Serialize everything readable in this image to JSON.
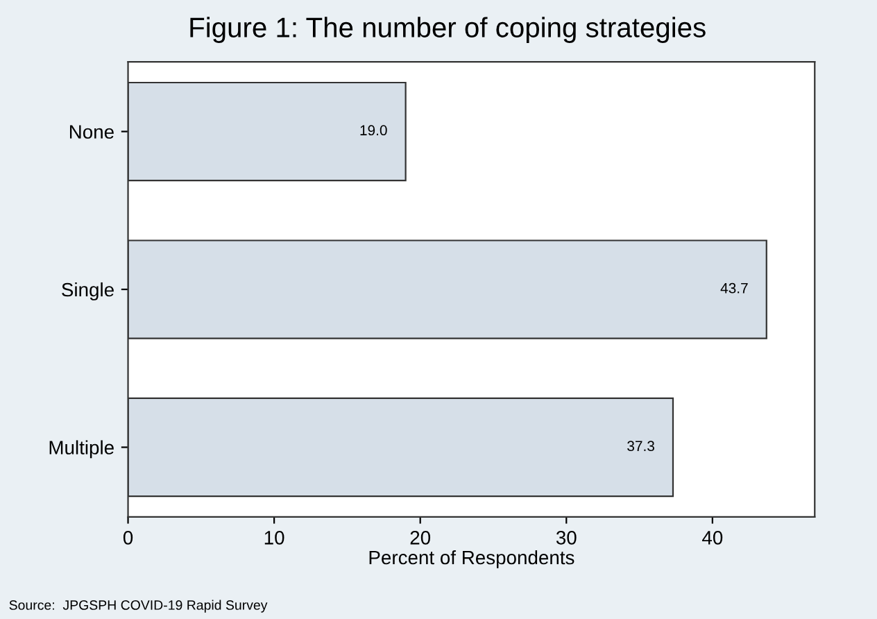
{
  "chart_data": {
    "type": "bar",
    "orientation": "horizontal",
    "title": "Figure 1: The number of coping strategies",
    "xlabel": "Percent of Respondents",
    "categories": [
      "None",
      "Single",
      "Multiple"
    ],
    "values": [
      19.0,
      43.7,
      37.3
    ],
    "color": "#d6dfe8",
    "value_labels": [
      "19.0",
      "43.7",
      "37.3"
    ],
    "xlim": [
      0,
      47
    ],
    "xticks": [
      0,
      10,
      20,
      30,
      40
    ],
    "grid": false,
    "legend": false,
    "annotations": [
      "Source:  JPGSPH COVID-19 Rapid Survey"
    ]
  }
}
